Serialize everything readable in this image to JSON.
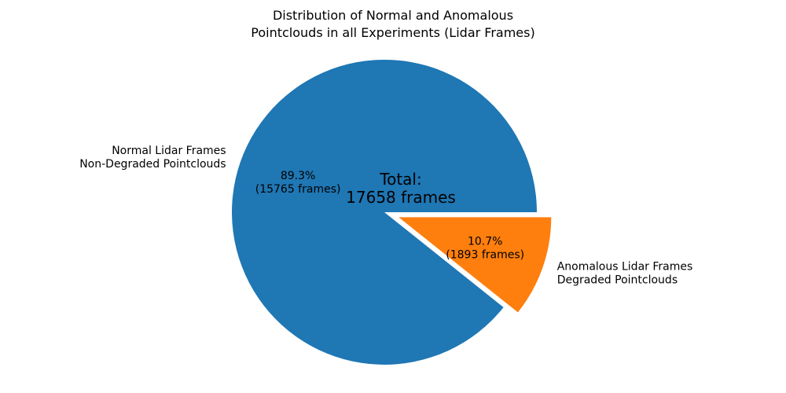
{
  "chart_data": {
    "type": "pie",
    "title": "Distribution of Normal and Anomalous\nPointclouds in all Experiments (Lidar Frames)",
    "total": 17658,
    "total_label": "Total:\n17658 frames",
    "start_angle": 0,
    "direction": "counterclockwise",
    "legend": "none",
    "slices": [
      {
        "name": "normal",
        "label": "Normal Lidar Frames\nNon-Degraded Pointclouds",
        "value": 15765,
        "pct": 89.3,
        "pct_label": "89.3%\n(15765 frames)",
        "color": "#1f77b4",
        "explode": 0
      },
      {
        "name": "anomalous",
        "label": "Anomalous Lidar Frames\nDegraded Pointclouds",
        "value": 1893,
        "pct": 10.7,
        "pct_label": "10.7%\n(1893 frames)",
        "color": "#ff7f0e",
        "explode": 0.1
      }
    ],
    "text_color": "#000000",
    "background_color": "#ffffff"
  }
}
